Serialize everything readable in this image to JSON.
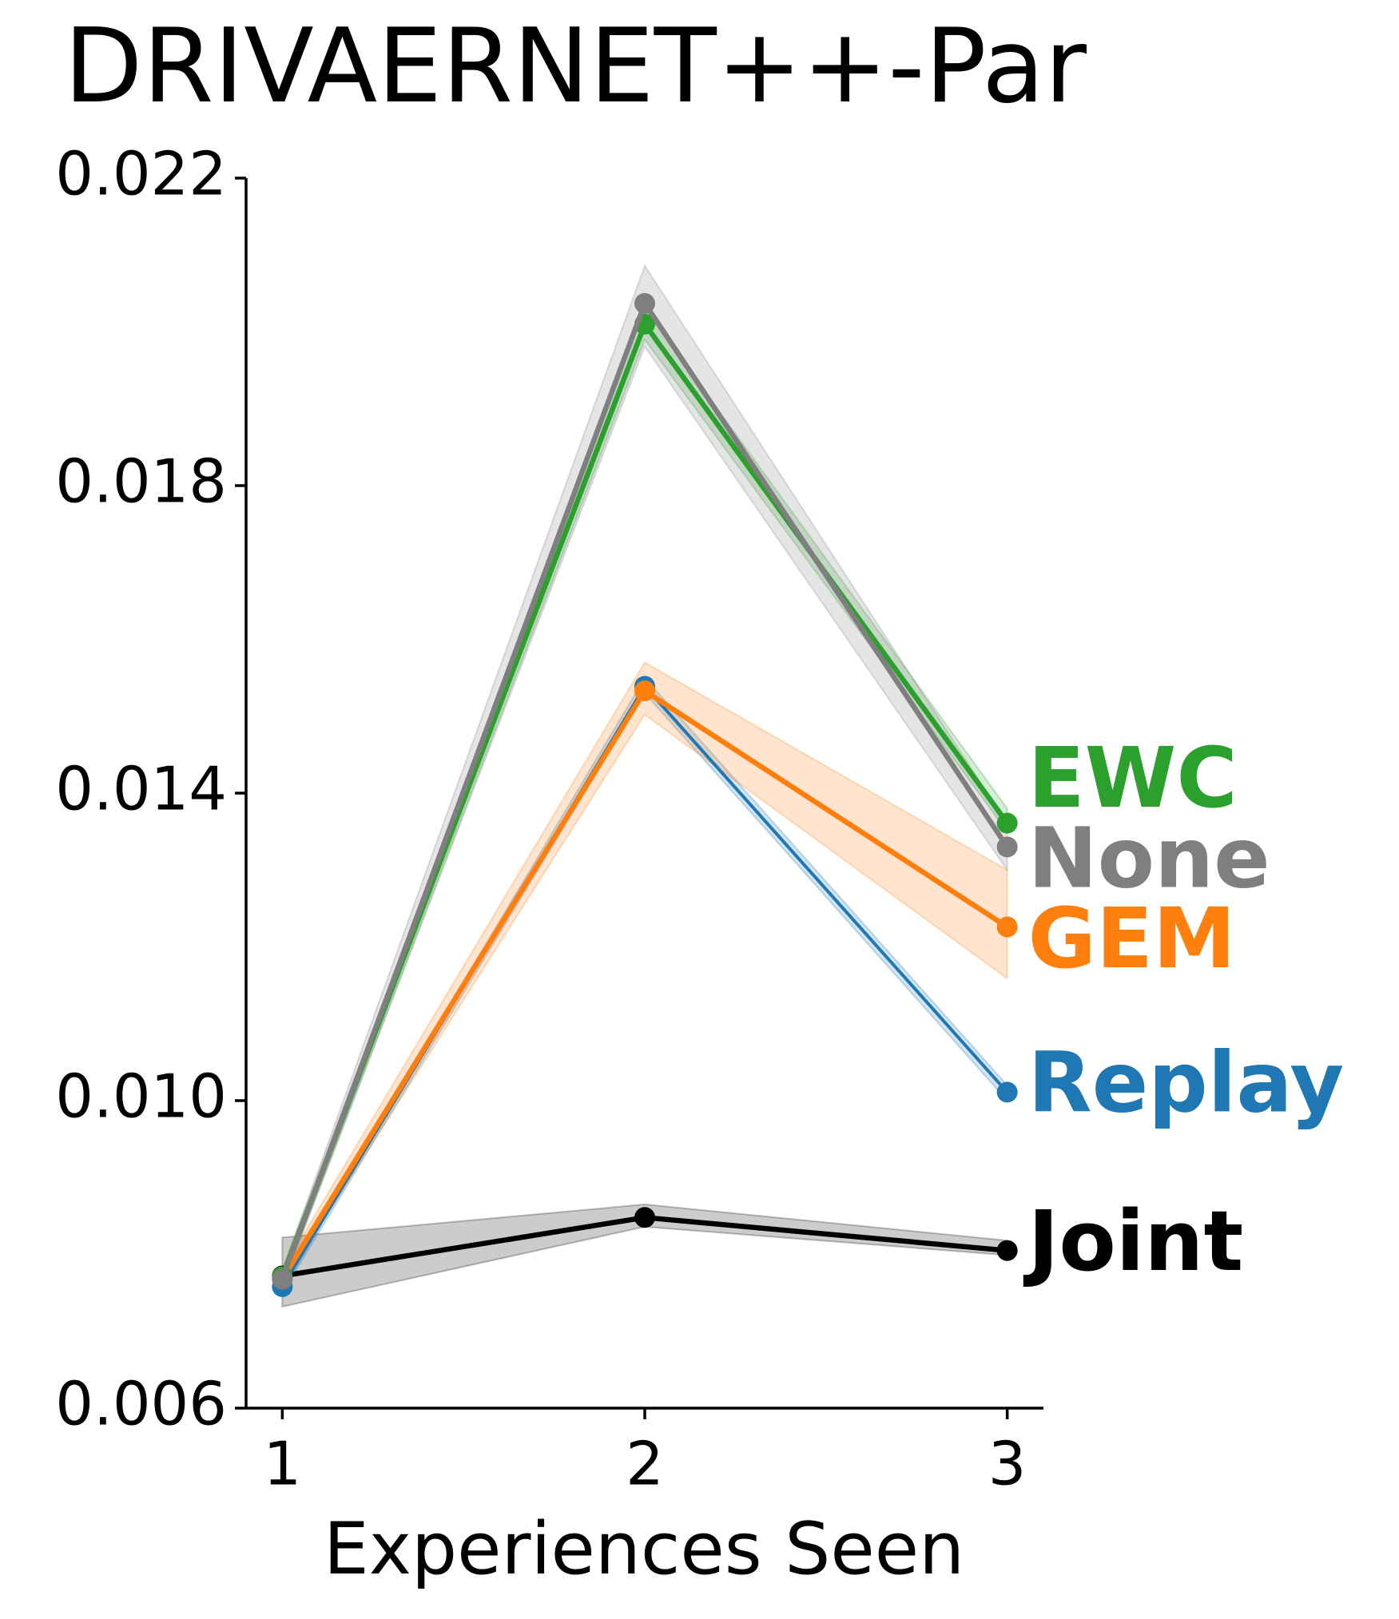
{
  "chart_data": {
    "type": "line",
    "title": "DRIVAERNET++-Par",
    "xlabel": "Experiences Seen",
    "x": [
      1,
      2,
      3
    ],
    "xlim": [
      0.9,
      3.1
    ],
    "xticks": [
      1,
      2,
      3
    ],
    "ylim": [
      0.006,
      0.022
    ],
    "yticks": [
      0.006,
      {
        "value": 0.01,
        "label": "0.010"
      },
      0.014,
      0.018,
      0.022
    ],
    "series": [
      {
        "name": "Joint",
        "color": "#000000",
        "values": [
          0.00772,
          0.00848,
          0.00805
        ],
        "lower": [
          0.00732,
          0.00836,
          0.00799
        ],
        "upper": [
          0.00822,
          0.00865,
          0.00818
        ]
      },
      {
        "name": "Replay",
        "color": "#1f77b4",
        "values": [
          0.00758,
          0.01539,
          0.01011
        ],
        "lower": [
          0.0075,
          0.0153,
          0.01
        ],
        "upper": [
          0.0076,
          0.0155,
          0.0102
        ]
      },
      {
        "name": "GEM",
        "color": "#ff7f0e",
        "values": [
          0.00768,
          0.01533,
          0.01226
        ],
        "lower": [
          0.0076,
          0.01502,
          0.01159
        ],
        "upper": [
          0.0078,
          0.0157,
          0.013
        ]
      },
      {
        "name": "EWC",
        "color": "#2ca02c",
        "values": [
          0.00771,
          0.0201,
          0.01361
        ],
        "lower": [
          0.0076,
          0.0199,
          0.0135
        ],
        "upper": [
          0.0078,
          0.0203,
          0.0138
        ]
      },
      {
        "name": "None",
        "color": "#7f7f7f",
        "values": [
          0.00768,
          0.02037,
          0.0133
        ],
        "lower": [
          0.0076,
          0.01981,
          0.013
        ],
        "upper": [
          0.0078,
          0.02086,
          0.0136
        ]
      }
    ]
  }
}
